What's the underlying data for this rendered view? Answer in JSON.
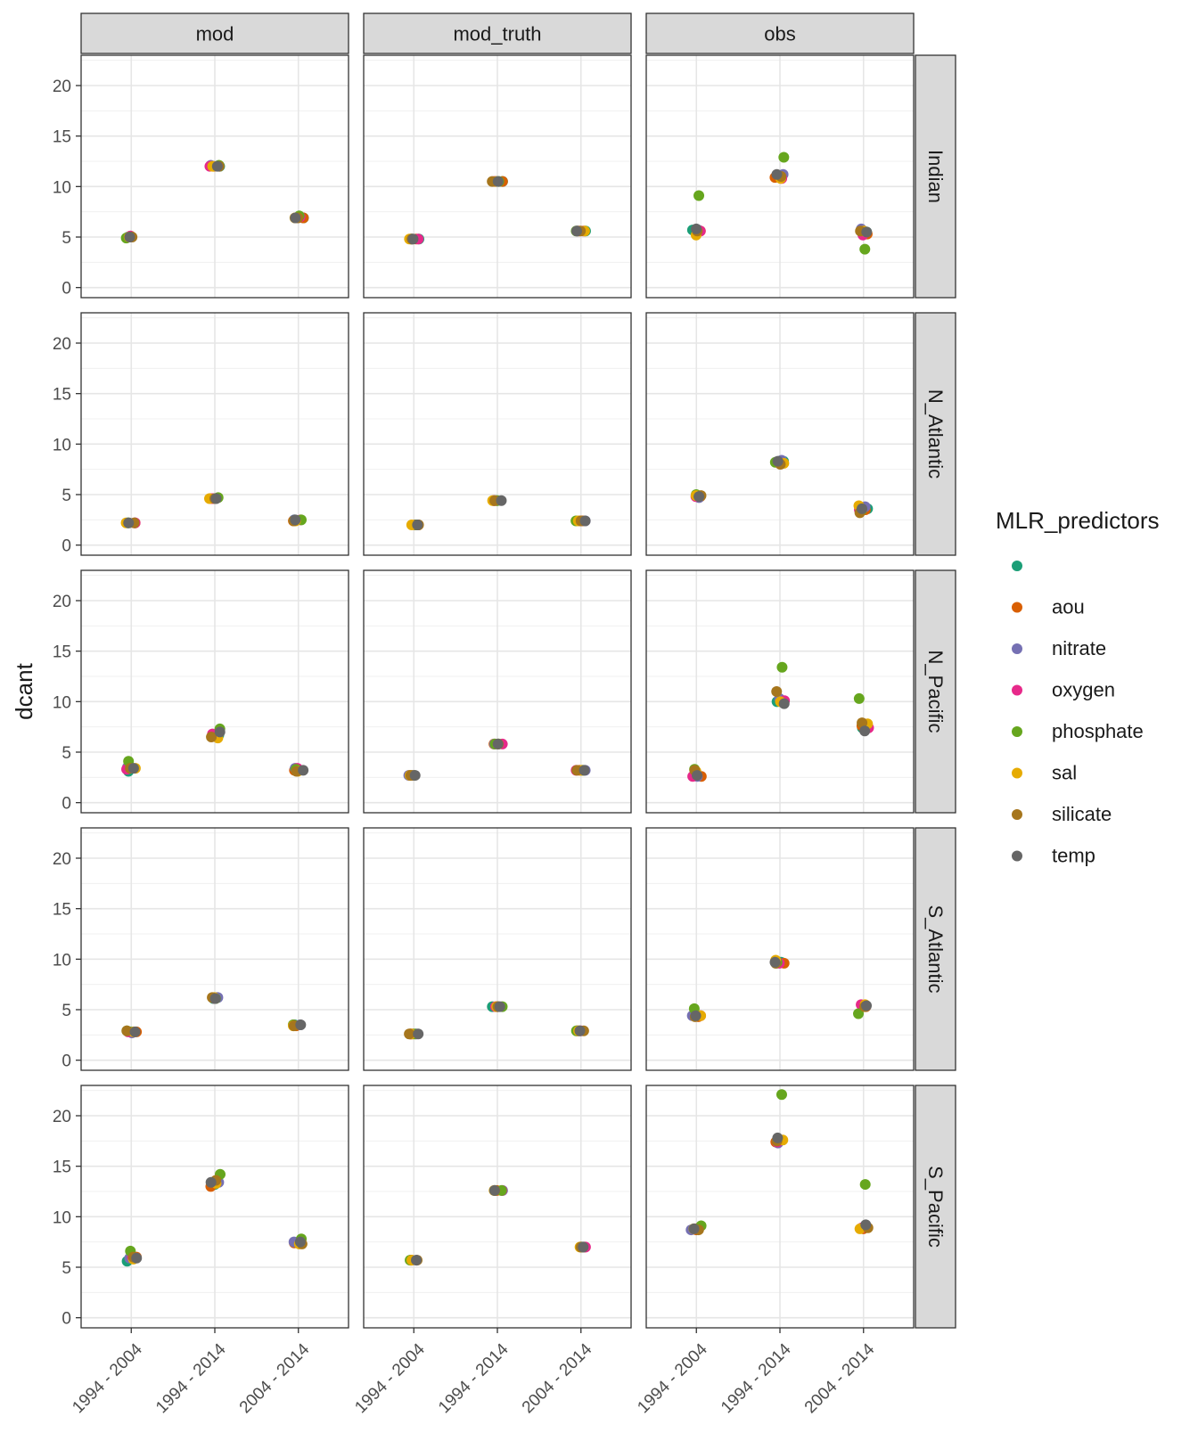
{
  "chart_data": {
    "type": "scatter",
    "facet_columns": [
      "mod",
      "mod_truth",
      "obs"
    ],
    "facet_rows": [
      "Indian",
      "N_Atlantic",
      "N_Pacific",
      "S_Atlantic",
      "S_Pacific"
    ],
    "categories": [
      "1994 - 2004",
      "1994 - 2014",
      "2004 - 2014"
    ],
    "ylabel": "dcant",
    "ylim": [
      -1,
      23
    ],
    "y_ticks": [
      0,
      5,
      10,
      15,
      20
    ],
    "legend": {
      "title": "MLR_predictors",
      "placement": "right",
      "entries": [
        {
          "name": "",
          "color": "#1B9E77"
        },
        {
          "name": "aou",
          "color": "#D95F02"
        },
        {
          "name": "nitrate",
          "color": "#7570B3"
        },
        {
          "name": "oxygen",
          "color": "#E7298A"
        },
        {
          "name": "phosphate",
          "color": "#66A61E"
        },
        {
          "name": "sal",
          "color": "#E6AB02"
        },
        {
          "name": "silicate",
          "color": "#A6761D"
        },
        {
          "name": "temp",
          "color": "#666666"
        }
      ]
    },
    "panels": {
      "mod": {
        "Indian": {
          "1994 - 2004": {
            "": 5.0,
            "aou": 5.1,
            "nitrate": 5.0,
            "oxygen": 5.1,
            "phosphate": 4.9,
            "sal": 5.0,
            "silicate": 5.0,
            "temp": 5.0
          },
          "1994 - 2014": {
            "": 12.0,
            "aou": 12.0,
            "nitrate": 12.1,
            "oxygen": 12.0,
            "phosphate": 12.1,
            "sal": 12.0,
            "silicate": 12.0,
            "temp": 12.0
          },
          "2004 - 2014": {
            "": 6.9,
            "aou": 6.9,
            "nitrate": 6.9,
            "oxygen": 7.0,
            "phosphate": 7.1,
            "sal": 6.9,
            "silicate": 6.9,
            "temp": 6.9
          }
        },
        "N_Atlantic": {
          "1994 - 2004": {
            "": 2.2,
            "aou": 2.2,
            "nitrate": 2.2,
            "oxygen": 2.2,
            "phosphate": 2.2,
            "sal": 2.2,
            "silicate": 2.2,
            "temp": 2.2
          },
          "1994 - 2014": {
            "": 4.6,
            "aou": 4.6,
            "nitrate": 4.6,
            "oxygen": 4.6,
            "phosphate": 4.7,
            "sal": 4.6,
            "silicate": 4.6,
            "temp": 4.6
          },
          "2004 - 2014": {
            "": 2.5,
            "aou": 2.4,
            "nitrate": 2.5,
            "oxygen": 2.5,
            "phosphate": 2.5,
            "sal": 2.4,
            "silicate": 2.4,
            "temp": 2.5
          }
        },
        "N_Pacific": {
          "1994 - 2004": {
            "": 3.1,
            "aou": 3.4,
            "nitrate": 3.5,
            "oxygen": 3.3,
            "phosphate": 4.1,
            "sal": 3.4,
            "silicate": 3.4,
            "temp": 3.4
          },
          "1994 - 2014": {
            "": 6.7,
            "aou": 6.6,
            "nitrate": 6.7,
            "oxygen": 6.8,
            "phosphate": 7.3,
            "sal": 6.4,
            "silicate": 6.5,
            "temp": 7.0
          },
          "2004 - 2014": {
            "": 3.3,
            "aou": 3.2,
            "nitrate": 3.4,
            "oxygen": 3.4,
            "phosphate": 3.3,
            "sal": 3.1,
            "silicate": 3.1,
            "temp": 3.2
          }
        },
        "S_Atlantic": {
          "1994 - 2004": {
            "": 2.8,
            "aou": 2.8,
            "nitrate": 2.7,
            "oxygen": 2.8,
            "phosphate": 2.9,
            "sal": 2.8,
            "silicate": 2.9,
            "temp": 2.8
          },
          "1994 - 2014": {
            "": 6.1,
            "aou": 6.2,
            "nitrate": 6.2,
            "oxygen": 6.1,
            "phosphate": 6.1,
            "sal": 6.2,
            "silicate": 6.2,
            "temp": 6.1
          },
          "2004 - 2014": {
            "": 3.5,
            "aou": 3.4,
            "nitrate": 3.5,
            "oxygen": 3.5,
            "phosphate": 3.5,
            "sal": 3.4,
            "silicate": 3.4,
            "temp": 3.5
          }
        },
        "S_Pacific": {
          "1994 - 2004": {
            "": 5.6,
            "aou": 6.0,
            "nitrate": 5.9,
            "oxygen": 6.0,
            "phosphate": 6.6,
            "sal": 5.8,
            "silicate": 6.0,
            "temp": 5.9
          },
          "1994 - 2014": {
            "": 13.2,
            "aou": 13.0,
            "nitrate": 13.4,
            "oxygen": 13.5,
            "phosphate": 14.2,
            "sal": 13.3,
            "silicate": 13.6,
            "temp": 13.4
          },
          "2004 - 2014": {
            "": 7.5,
            "aou": 7.4,
            "nitrate": 7.5,
            "oxygen": 7.5,
            "phosphate": 7.8,
            "sal": 7.3,
            "silicate": 7.3,
            "temp": 7.5
          }
        }
      },
      "mod_truth": {
        "Indian": {
          "1994 - 2004": {
            "": 4.8,
            "aou": 4.8,
            "nitrate": 4.8,
            "oxygen": 4.8,
            "phosphate": 4.8,
            "sal": 4.8,
            "silicate": 4.8,
            "temp": 4.8
          },
          "1994 - 2014": {
            "": 10.5,
            "aou": 10.5,
            "nitrate": 10.5,
            "oxygen": 10.5,
            "phosphate": 10.5,
            "sal": 10.5,
            "silicate": 10.5,
            "temp": 10.5
          },
          "2004 - 2014": {
            "": 5.6,
            "aou": 5.6,
            "nitrate": 5.6,
            "oxygen": 5.6,
            "phosphate": 5.6,
            "sal": 5.6,
            "silicate": 5.6,
            "temp": 5.6
          }
        },
        "N_Atlantic": {
          "1994 - 2004": {
            "": 2.0,
            "aou": 2.0,
            "nitrate": 2.0,
            "oxygen": 2.0,
            "phosphate": 2.0,
            "sal": 2.0,
            "silicate": 2.0,
            "temp": 2.0
          },
          "1994 - 2014": {
            "": 4.4,
            "aou": 4.4,
            "nitrate": 4.4,
            "oxygen": 4.4,
            "phosphate": 4.4,
            "sal": 4.4,
            "silicate": 4.4,
            "temp": 4.4
          },
          "2004 - 2014": {
            "": 2.4,
            "aou": 2.4,
            "nitrate": 2.4,
            "oxygen": 2.4,
            "phosphate": 2.4,
            "sal": 2.4,
            "silicate": 2.4,
            "temp": 2.4
          }
        },
        "N_Pacific": {
          "1994 - 2004": {
            "": 2.7,
            "aou": 2.7,
            "nitrate": 2.7,
            "oxygen": 2.7,
            "phosphate": 2.7,
            "sal": 2.7,
            "silicate": 2.7,
            "temp": 2.7
          },
          "1994 - 2014": {
            "": 5.8,
            "aou": 5.8,
            "nitrate": 5.8,
            "oxygen": 5.8,
            "phosphate": 5.8,
            "sal": 5.8,
            "silicate": 5.8,
            "temp": 5.8
          },
          "2004 - 2014": {
            "": 3.2,
            "aou": 3.2,
            "nitrate": 3.2,
            "oxygen": 3.2,
            "phosphate": 3.2,
            "sal": 3.2,
            "silicate": 3.2,
            "temp": 3.2
          }
        },
        "S_Atlantic": {
          "1994 - 2004": {
            "": 2.6,
            "aou": 2.6,
            "nitrate": 2.6,
            "oxygen": 2.6,
            "phosphate": 2.6,
            "sal": 2.6,
            "silicate": 2.6,
            "temp": 2.6
          },
          "1994 - 2014": {
            "": 5.3,
            "aou": 5.3,
            "nitrate": 5.3,
            "oxygen": 5.3,
            "phosphate": 5.3,
            "sal": 5.3,
            "silicate": 5.3,
            "temp": 5.3
          },
          "2004 - 2014": {
            "": 2.9,
            "aou": 2.9,
            "nitrate": 2.9,
            "oxygen": 2.9,
            "phosphate": 2.9,
            "sal": 2.9,
            "silicate": 2.9,
            "temp": 2.9
          }
        },
        "S_Pacific": {
          "1994 - 2004": {
            "": 5.7,
            "aou": 5.7,
            "nitrate": 5.7,
            "oxygen": 5.7,
            "phosphate": 5.7,
            "sal": 5.7,
            "silicate": 5.7,
            "temp": 5.7
          },
          "1994 - 2014": {
            "": 12.6,
            "aou": 12.6,
            "nitrate": 12.6,
            "oxygen": 12.6,
            "phosphate": 12.6,
            "sal": 12.6,
            "silicate": 12.6,
            "temp": 12.6
          },
          "2004 - 2014": {
            "": 7.0,
            "aou": 7.0,
            "nitrate": 7.0,
            "oxygen": 7.0,
            "phosphate": 7.0,
            "sal": 7.0,
            "silicate": 7.0,
            "temp": 7.0
          }
        }
      },
      "obs": {
        "Indian": {
          "1994 - 2004": {
            "": 5.7,
            "aou": 5.6,
            "nitrate": 5.7,
            "oxygen": 5.6,
            "phosphate": 9.1,
            "sal": 5.2,
            "silicate": 5.6,
            "temp": 5.8
          },
          "1994 - 2014": {
            "": 11.0,
            "aou": 10.9,
            "nitrate": 11.2,
            "oxygen": 10.8,
            "phosphate": 12.9,
            "sal": 10.8,
            "silicate": 11.0,
            "temp": 11.2
          },
          "2004 - 2014": {
            "": 5.5,
            "aou": 5.3,
            "nitrate": 5.8,
            "oxygen": 5.2,
            "phosphate": 3.8,
            "sal": 5.6,
            "silicate": 5.6,
            "temp": 5.5
          }
        },
        "N_Atlantic": {
          "1994 - 2004": {
            "": 4.8,
            "aou": 4.8,
            "nitrate": 4.7,
            "oxygen": 4.8,
            "phosphate": 5.0,
            "sal": 4.9,
            "silicate": 4.9,
            "temp": 4.8
          },
          "1994 - 2014": {
            "": 8.3,
            "aou": 8.2,
            "nitrate": 8.4,
            "oxygen": 8.2,
            "phosphate": 8.2,
            "sal": 8.1,
            "silicate": 8.0,
            "temp": 8.3
          },
          "2004 - 2014": {
            "": 3.6,
            "aou": 3.5,
            "nitrate": 3.8,
            "oxygen": 3.5,
            "phosphate": 3.4,
            "sal": 3.9,
            "silicate": 3.2,
            "temp": 3.6
          }
        },
        "N_Pacific": {
          "1994 - 2004": {
            "": 2.7,
            "aou": 2.6,
            "nitrate": 2.6,
            "oxygen": 2.6,
            "phosphate": 3.3,
            "sal": 3.1,
            "silicate": 3.2,
            "temp": 2.7
          },
          "1994 - 2014": {
            "": 10.0,
            "aou": 9.9,
            "nitrate": 10.3,
            "oxygen": 10.1,
            "phosphate": 13.4,
            "sal": 10.0,
            "silicate": 11.0,
            "temp": 9.8
          },
          "2004 - 2014": {
            "": 7.4,
            "aou": 7.6,
            "nitrate": 7.5,
            "oxygen": 7.4,
            "phosphate": 10.3,
            "sal": 7.8,
            "silicate": 7.9,
            "temp": 7.1
          }
        },
        "S_Atlantic": {
          "1994 - 2004": {
            "": 4.4,
            "aou": 4.3,
            "nitrate": 4.4,
            "oxygen": 4.4,
            "phosphate": 5.1,
            "sal": 4.4,
            "silicate": 4.3,
            "temp": 4.4
          },
          "1994 - 2014": {
            "": 9.7,
            "aou": 9.6,
            "nitrate": 9.6,
            "oxygen": 9.6,
            "phosphate": 9.7,
            "sal": 9.9,
            "silicate": 9.6,
            "temp": 9.7
          },
          "2004 - 2014": {
            "": 5.4,
            "aou": 5.3,
            "nitrate": 5.4,
            "oxygen": 5.5,
            "phosphate": 4.6,
            "sal": 5.5,
            "silicate": 5.3,
            "temp": 5.4
          }
        },
        "S_Pacific": {
          "1994 - 2004": {
            "": 8.8,
            "aou": 8.7,
            "nitrate": 8.7,
            "oxygen": 8.8,
            "phosphate": 9.1,
            "sal": 8.8,
            "silicate": 8.7,
            "temp": 8.8
          },
          "1994 - 2014": {
            "": 17.5,
            "aou": 17.4,
            "nitrate": 17.3,
            "oxygen": 17.4,
            "phosphate": 22.1,
            "sal": 17.6,
            "silicate": 17.5,
            "temp": 17.8
          },
          "2004 - 2014": {
            "": 8.9,
            "aou": 8.8,
            "nitrate": 9.0,
            "oxygen": 8.9,
            "phosphate": 13.2,
            "sal": 8.8,
            "silicate": 8.9,
            "temp": 9.2
          }
        }
      }
    }
  }
}
